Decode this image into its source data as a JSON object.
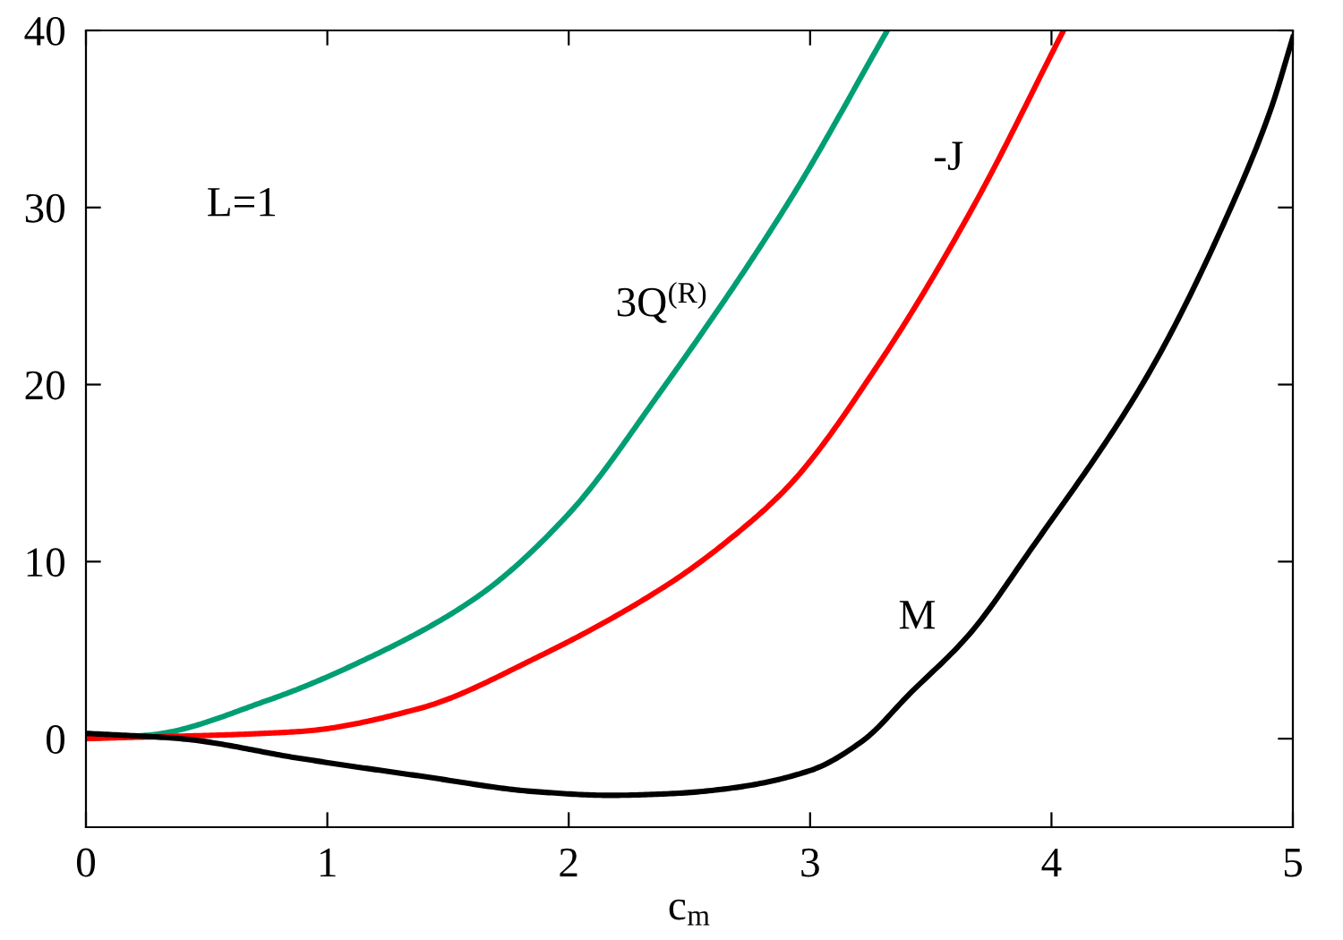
{
  "chart_data": {
    "type": "line",
    "xlabel": "c$_{m}$",
    "xlim": [
      0,
      5
    ],
    "ylim": [
      -5,
      40
    ],
    "xticks": [
      0,
      1,
      2,
      3,
      4,
      5
    ],
    "yticks": [
      0,
      10,
      20,
      30,
      40
    ],
    "grid": false,
    "legend": false,
    "series": [
      {
        "name": "3Q$^{(R)}$",
        "color": "#009e73",
        "x": [
          0,
          0.26,
          0.76,
          1.13,
          1.62,
          2.0,
          2.37,
          2.92,
          3.32
        ],
        "values": [
          0,
          0.2,
          2.2,
          4.3,
          8.0,
          12.7,
          19.4,
          30.5,
          40
        ]
      },
      {
        "name": "-J",
        "color": "#ff0000",
        "x": [
          0,
          0.88,
          1.38,
          1.87,
          2.41,
          2.67,
          2.92,
          3.3,
          3.67,
          4.05
        ],
        "values": [
          0,
          0.4,
          1.7,
          4.6,
          8.7,
          11.3,
          14.4,
          21.5,
          29.9,
          40
        ]
      },
      {
        "name": "M",
        "color": "#000000",
        "x": [
          0,
          0.39,
          0.88,
          1.38,
          1.87,
          2.17,
          2.43,
          2.67,
          3.0,
          3.22,
          3.41,
          3.66,
          3.91,
          4.41,
          4.75,
          4.91,
          5.0
        ],
        "values": [
          0.3,
          0,
          -1.1,
          -2.1,
          -3.0,
          -3.2,
          -3.1,
          -2.8,
          -1.8,
          -0.1,
          2.5,
          5.9,
          10.6,
          20.8,
          30.2,
          35.6,
          39.6
        ]
      }
    ],
    "annotations": [
      "L=1"
    ]
  }
}
